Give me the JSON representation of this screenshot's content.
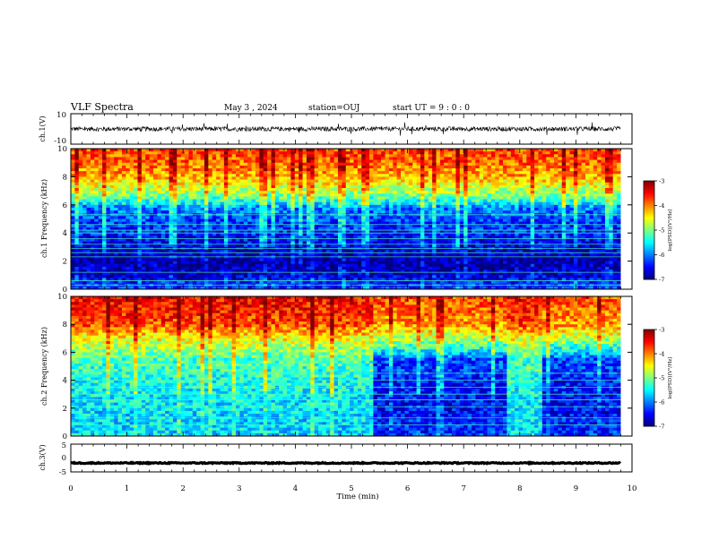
{
  "header": {
    "title": "VLF Spectra",
    "date": "May 3 , 2024",
    "station": "station=OUJ",
    "start": "start UT = 9 : 0 : 0"
  },
  "colorbar": {
    "label": "log(PSD)(V²/Hz)",
    "ticks": [
      "-3",
      "-4",
      "-5",
      "-6",
      "-7"
    ],
    "range": [
      -7,
      -3
    ],
    "colormap": [
      "#00007f",
      "#0000ff",
      "#007fff",
      "#00ffff",
      "#7fff7f",
      "#ffff00",
      "#ff7f00",
      "#ff0000",
      "#7f0000"
    ]
  },
  "chart_data": [
    {
      "type": "line",
      "panel": "ch1-waveform",
      "ylabel": "ch.1(V)",
      "ylim": [
        -10,
        10
      ],
      "yticks": [
        "10",
        "-10"
      ],
      "xlim": [
        0,
        10
      ],
      "trace_color": "#000000",
      "baseline": 0,
      "amplitude": 1.5,
      "x_end": 9.8
    },
    {
      "type": "heatmap",
      "panel": "ch1-spectrogram",
      "ylabel": "ch.1 Frequency (kHz)",
      "ylim": [
        0,
        10
      ],
      "yticks": [
        "0",
        "2",
        "4",
        "6",
        "8",
        "10"
      ],
      "xlim": [
        0,
        10
      ],
      "x_end": 9.8,
      "zlim": [
        -7,
        -3
      ],
      "profile": [
        {
          "f": 0,
          "v": -6.3
        },
        {
          "f": 0.5,
          "v": -6.4
        },
        {
          "f": 1,
          "v": -6.7
        },
        {
          "f": 2,
          "v": -6.9
        },
        {
          "f": 3,
          "v": -6.6
        },
        {
          "f": 4,
          "v": -6.4
        },
        {
          "f": 5,
          "v": -6.2
        },
        {
          "f": 5.8,
          "v": -6.0
        },
        {
          "f": 6.2,
          "v": -5.4
        },
        {
          "f": 7,
          "v": -4.8
        },
        {
          "f": 8,
          "v": -4.2
        },
        {
          "f": 9,
          "v": -3.9
        },
        {
          "f": 10,
          "v": -3.8
        }
      ],
      "lines_khz": [
        0.3,
        0.6,
        1.2,
        2.3,
        2.6,
        2.9,
        3.2,
        3.6,
        4.0,
        4.2,
        4.6,
        5.3
      ]
    },
    {
      "type": "heatmap",
      "panel": "ch2-spectrogram",
      "ylabel": "ch.2 Frequency (kHz)",
      "ylim": [
        0,
        10
      ],
      "yticks": [
        "0",
        "2",
        "4",
        "6",
        "8",
        "10"
      ],
      "xlim": [
        0,
        10
      ],
      "x_end": 9.8,
      "zlim": [
        -7,
        -3
      ],
      "profile": [
        {
          "f": 0,
          "v": -5.6
        },
        {
          "f": 2,
          "v": -5.6
        },
        {
          "f": 4,
          "v": -5.4
        },
        {
          "f": 5.5,
          "v": -5.2
        },
        {
          "f": 6,
          "v": -5.0
        },
        {
          "f": 7,
          "v": -4.5
        },
        {
          "f": 8,
          "v": -3.8
        },
        {
          "f": 9,
          "v": -3.6
        },
        {
          "f": 10,
          "v": -3.5
        }
      ],
      "quiet_intervals_min": [
        [
          5.4,
          7.8
        ],
        [
          8.4,
          9.8
        ]
      ],
      "quiet_profile": [
        {
          "f": 0,
          "v": -6.3
        },
        {
          "f": 2,
          "v": -6.5
        },
        {
          "f": 4,
          "v": -6.4
        },
        {
          "f": 5.5,
          "v": -6.2
        },
        {
          "f": 6,
          "v": -5.6
        },
        {
          "f": 7,
          "v": -4.8
        },
        {
          "f": 8,
          "v": -4.1
        },
        {
          "f": 10,
          "v": -3.8
        }
      ],
      "lines_khz": [
        0.8,
        1.3,
        2.1,
        2.6,
        3.0,
        3.5,
        4.0,
        4.5
      ]
    },
    {
      "type": "line",
      "panel": "ch3-waveform",
      "ylabel": "ch.3(V)",
      "ylim": [
        -5,
        5
      ],
      "yticks": [
        "5",
        "0",
        "-5"
      ],
      "xlim": [
        0,
        10
      ],
      "xlabel": "Time (min)",
      "xticks": [
        "0",
        "1",
        "2",
        "3",
        "4",
        "5",
        "6",
        "7",
        "8",
        "9",
        "10"
      ],
      "trace_color": "#000000",
      "baseline": -1.8,
      "amplitude": 0.2,
      "x_end": 9.8
    }
  ]
}
